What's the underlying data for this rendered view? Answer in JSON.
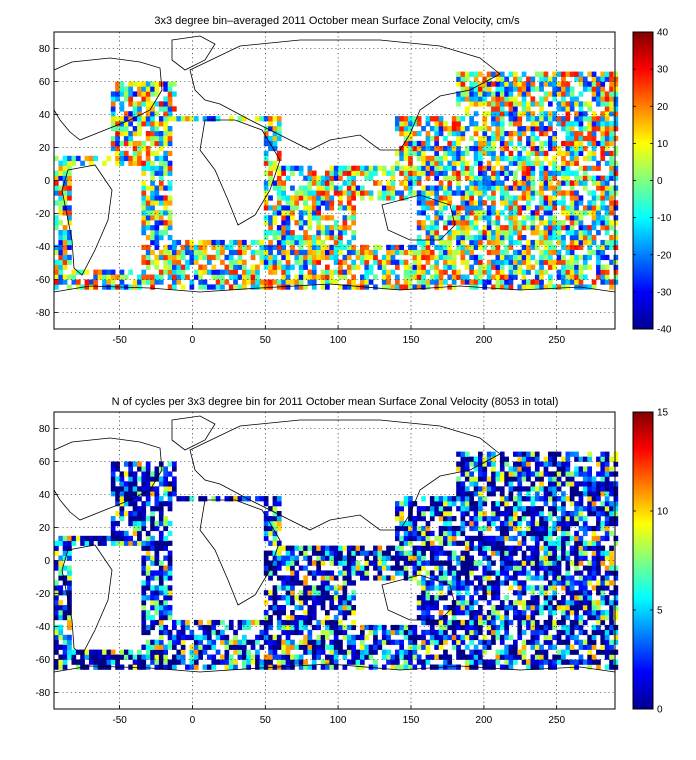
{
  "chart_data": [
    {
      "type": "heatmap",
      "title": "3x3 degree bin–averaged 2011 October mean Surface Zonal Velocity, cm/s",
      "xlim": [
        -95,
        290
      ],
      "ylim": [
        -90,
        90
      ],
      "xticks": [
        -50,
        0,
        50,
        100,
        150,
        200,
        250
      ],
      "yticks": [
        80,
        60,
        40,
        20,
        0,
        -20,
        -40,
        -60,
        -80
      ],
      "grid": true,
      "bin_size_deg": 3,
      "colorbar": {
        "min": -40,
        "max": 40,
        "ticks": [
          40,
          30,
          20,
          10,
          0,
          -10,
          -20,
          -30,
          -40
        ],
        "colormap": "jet"
      },
      "value_range": [
        -40,
        40
      ]
    },
    {
      "type": "heatmap",
      "title": "N of cycles per 3x3 degree bin for 2011 October mean Surface Zonal Velocity (8053 in total)",
      "xlim": [
        -95,
        290
      ],
      "ylim": [
        -90,
        90
      ],
      "xticks": [
        -50,
        0,
        50,
        100,
        150,
        200,
        250
      ],
      "yticks": [
        80,
        60,
        40,
        20,
        0,
        -20,
        -40,
        -60,
        -80
      ],
      "grid": true,
      "bin_size_deg": 3,
      "total_cycles": 8053,
      "colorbar": {
        "min": 0,
        "max": 15,
        "ticks": [
          15,
          10,
          5,
          0
        ],
        "colormap": "jet"
      },
      "value_range": [
        0,
        15
      ]
    }
  ]
}
